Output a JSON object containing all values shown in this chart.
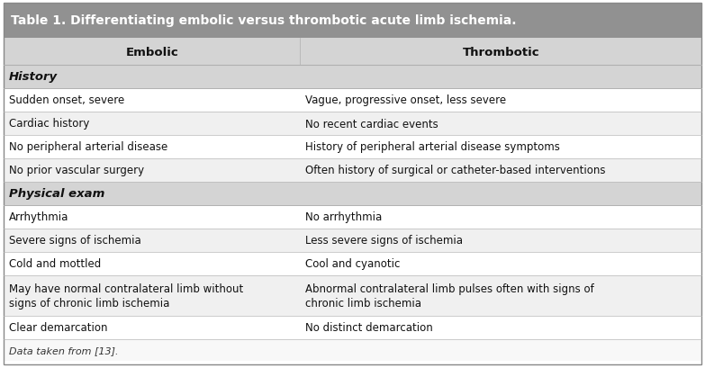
{
  "title": "Table 1. Differentiating embolic versus thrombotic acute limb ischemia.",
  "title_bg": "#919191",
  "title_color": "#ffffff",
  "header_bg": "#d4d4d4",
  "section_bg": "#d4d4d4",
  "row_bg_white": "#ffffff",
  "row_bg_light": "#f0f0f0",
  "col1_header": "Embolic",
  "col2_header": "Thrombotic",
  "col_split": 0.425,
  "sections": [
    {
      "section_label": "History",
      "rows": [
        [
          "Sudden onset, severe",
          "Vague, progressive onset, less severe"
        ],
        [
          "Cardiac history",
          "No recent cardiac events"
        ],
        [
          "No peripheral arterial disease",
          "History of peripheral arterial disease symptoms"
        ],
        [
          "No prior vascular surgery",
          "Often history of surgical or catheter-based interventions"
        ]
      ]
    },
    {
      "section_label": "Physical exam",
      "rows": [
        [
          "Arrhythmia",
          "No arrhythmia"
        ],
        [
          "Severe signs of ischemia",
          "Less severe signs of ischemia"
        ],
        [
          "Cold and mottled",
          "Cool and cyanotic"
        ],
        [
          "May have normal contralateral limb without\nsigns of chronic limb ischemia",
          "Abnormal contralateral limb pulses often with signs of\nchronic limb ischemia"
        ],
        [
          "Clear demarcation",
          "No distinct demarcation"
        ]
      ]
    }
  ],
  "footer": "Data taken from [13].",
  "font_size": 8.5,
  "header_font_size": 9.5,
  "title_font_size": 10.0,
  "section_font_size": 9.5
}
